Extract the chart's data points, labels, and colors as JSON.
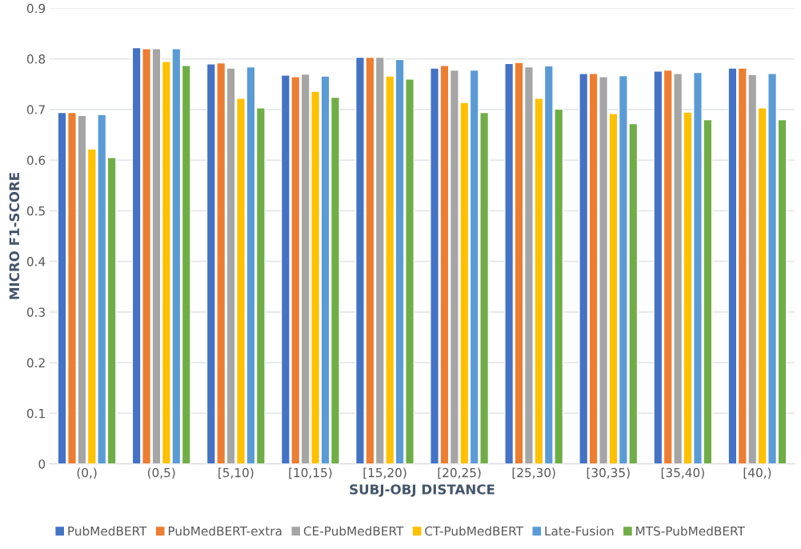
{
  "chart_data": {
    "type": "bar",
    "xlabel": "SUBJ-OBJ DISTANCE",
    "ylabel": "MICRO F1-SCORE",
    "categories": [
      "(0,)",
      "(0,5)",
      "[5,10)",
      "[10,15)",
      "[15,20)",
      "[20,25)",
      "[25,30)",
      "[30,35)",
      "[35,40)",
      "[40,)"
    ],
    "series": [
      {
        "name": "PubMedBERT",
        "color": "#4472c4",
        "values": [
          0.694,
          0.822,
          0.79,
          0.768,
          0.803,
          0.782,
          0.791,
          0.771,
          0.776,
          0.782
        ]
      },
      {
        "name": "PubMedBERT-extra",
        "color": "#ed7d31",
        "values": [
          0.694,
          0.82,
          0.792,
          0.765,
          0.803,
          0.787,
          0.793,
          0.771,
          0.778,
          0.782
        ]
      },
      {
        "name": "CE-PubMedBERT",
        "color": "#a5a5a5",
        "values": [
          0.688,
          0.82,
          0.782,
          0.77,
          0.803,
          0.778,
          0.784,
          0.765,
          0.771,
          0.769
        ]
      },
      {
        "name": "CT-PubMedBERT",
        "color": "#ffc000",
        "values": [
          0.622,
          0.795,
          0.722,
          0.736,
          0.766,
          0.714,
          0.722,
          0.692,
          0.695,
          0.703
        ]
      },
      {
        "name": "Late-Fusion",
        "color": "#5b9bd5",
        "values": [
          0.69,
          0.82,
          0.784,
          0.766,
          0.799,
          0.778,
          0.786,
          0.767,
          0.773,
          0.771
        ]
      },
      {
        "name": "MTS-PubMedBERT",
        "color": "#70ad47",
        "values": [
          0.605,
          0.787,
          0.703,
          0.724,
          0.76,
          0.694,
          0.701,
          0.672,
          0.68,
          0.68
        ]
      }
    ],
    "ylim": [
      0,
      0.9
    ],
    "yticks": [
      {
        "value": 0,
        "label": "0"
      },
      0.1,
      0.2,
      0.3,
      0.4,
      0.5,
      0.6,
      0.7,
      0.8,
      0.9
    ],
    "grid": "y",
    "legend": "bottom"
  }
}
